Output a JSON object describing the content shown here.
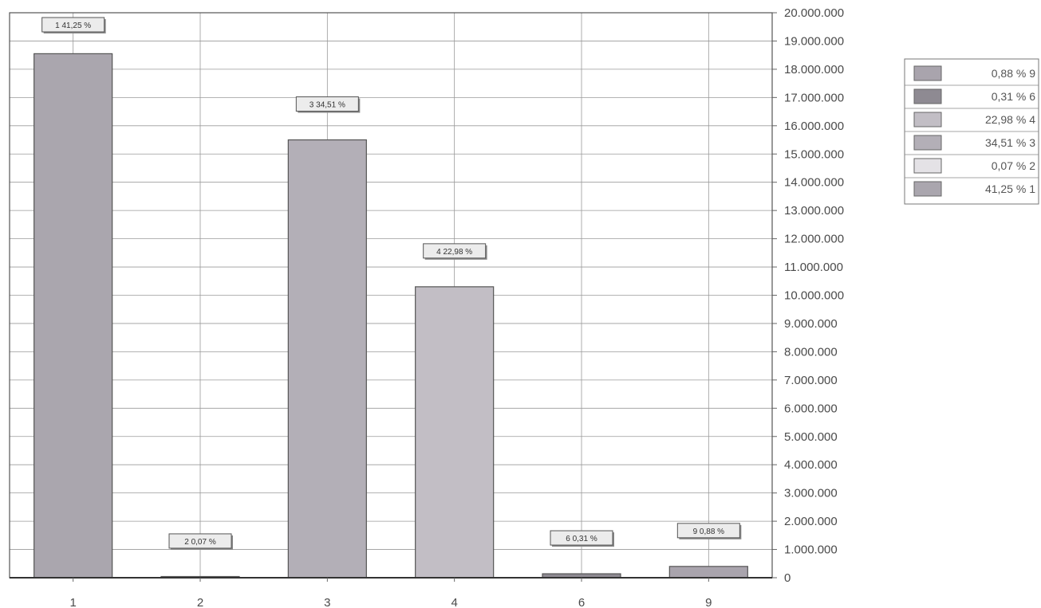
{
  "chart_data": {
    "type": "bar",
    "categories": [
      "1",
      "2",
      "3",
      "4",
      "6",
      "9"
    ],
    "values": [
      18550000,
      30000,
      15500000,
      10300000,
      140000,
      400000
    ],
    "data_labels": [
      "1 41,25 %",
      "2 0,07 %",
      "3 34,51 %",
      "4 22,98 %",
      "6 0,31 %",
      "9 0,88 %"
    ],
    "ylim": [
      0,
      20000000
    ],
    "y_ticks": [
      "0",
      "1.000.000",
      "2.000.000",
      "3.000.000",
      "4.000.000",
      "5.000.000",
      "6.000.000",
      "7.000.000",
      "8.000.000",
      "9.000.000",
      "10.000.000",
      "11.000.000",
      "12.000.000",
      "13.000.000",
      "14.000.000",
      "15.000.000",
      "16.000.000",
      "17.000.000",
      "18.000.000",
      "19.000.000",
      "20.000.000"
    ],
    "y_axis_position": "right",
    "grid": true,
    "legend_position": "right",
    "legend": [
      {
        "label": "0,88 % 9",
        "color": "#a9a4ad"
      },
      {
        "label": "0,31 % 6",
        "color": "#8e8a92"
      },
      {
        "label": "22,98 % 4",
        "color": "#c2bec5"
      },
      {
        "label": "34,51 % 3",
        "color": "#b3afb7"
      },
      {
        "label": "0,07 % 2",
        "color": "#e4e2e6"
      },
      {
        "label": "41,25 % 1",
        "color": "#aaa6ae"
      }
    ],
    "bar_colors": [
      "#aaa6ae",
      "#8e8a92",
      "#b3afb7",
      "#c2bec5",
      "#8e8a92",
      "#a9a4ad"
    ],
    "title": "",
    "xlabel": "",
    "ylabel": ""
  }
}
